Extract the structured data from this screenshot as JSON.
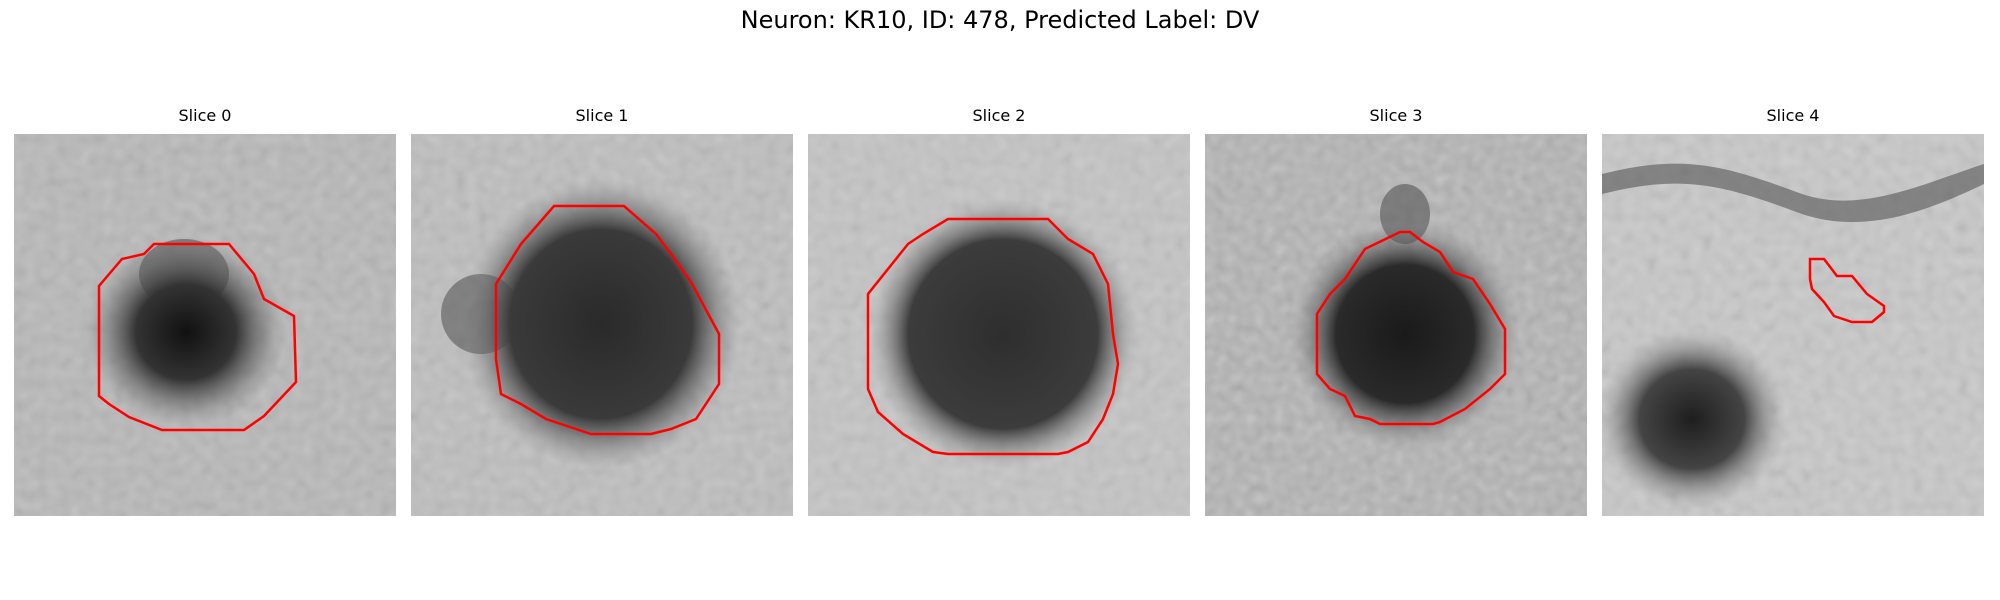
{
  "figure": {
    "title": "Neuron: KR10, ID: 478, Predicted Label: DV"
  },
  "panels": [
    {
      "title": "Slice 0"
    },
    {
      "title": "Slice 1"
    },
    {
      "title": "Slice 2"
    },
    {
      "title": "Slice 3"
    },
    {
      "title": "Slice 4"
    }
  ],
  "colors": {
    "contour": "#ff0000",
    "background": "#ffffff"
  }
}
